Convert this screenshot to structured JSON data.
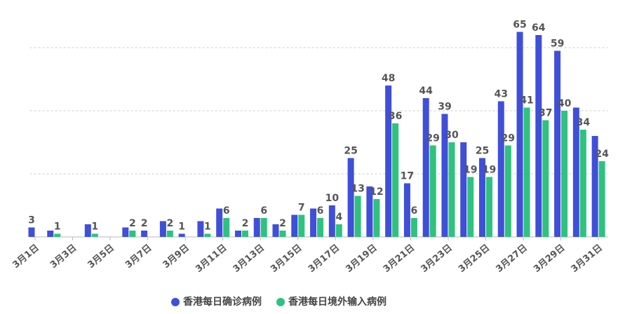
{
  "chart_data": {
    "type": "bar",
    "categories": [
      "3月1日",
      null,
      "3月3日",
      null,
      "3月5日",
      null,
      "3月7日",
      null,
      "3月9日",
      null,
      "3月11日",
      null,
      "3月13日",
      null,
      "3月15日",
      null,
      "3月17日",
      null,
      "3月19日",
      null,
      "3月21日",
      null,
      "3月23日",
      null,
      "3月25日",
      null,
      "3月27日",
      null,
      "3月29日",
      null,
      "3月31日"
    ],
    "series": [
      {
        "name": "香港每日确诊病例",
        "color": "#3f4fd9",
        "values": [
          3,
          2,
          0,
          4,
          0,
          3,
          2,
          5,
          1,
          5,
          9,
          2,
          6,
          4,
          7,
          9,
          10,
          25,
          16,
          48,
          17,
          44,
          39,
          30,
          25,
          43,
          65,
          64,
          59,
          41,
          32
        ],
        "value_labels": [
          "3",
          null,
          null,
          null,
          null,
          null,
          "2",
          null,
          "1",
          null,
          null,
          null,
          null,
          null,
          null,
          null,
          "10",
          "25",
          null,
          "48",
          "17",
          "44",
          "39",
          null,
          "25",
          "43",
          "65",
          "64",
          "59",
          null,
          null
        ]
      },
      {
        "name": "香港每日境外输入病例",
        "color": "#2ec27e",
        "values": [
          0,
          1,
          0,
          1,
          0,
          2,
          0,
          2,
          0,
          1,
          6,
          2,
          6,
          2,
          7,
          6,
          4,
          13,
          12,
          36,
          6,
          29,
          30,
          19,
          19,
          29,
          41,
          37,
          40,
          34,
          24
        ],
        "value_labels": [
          null,
          "1",
          null,
          "1",
          null,
          "2",
          null,
          "2",
          null,
          "1",
          "6",
          "2",
          "6",
          "2",
          "7",
          "6",
          "4",
          "13",
          "12",
          "36",
          "6",
          "29",
          "30",
          "19",
          "19",
          "29",
          "41",
          "37",
          "40",
          "34",
          "24"
        ]
      }
    ],
    "ylim": [
      0,
      70
    ],
    "yticks": [
      0,
      20,
      40,
      60
    ],
    "grid": true,
    "legend": "bottom"
  }
}
